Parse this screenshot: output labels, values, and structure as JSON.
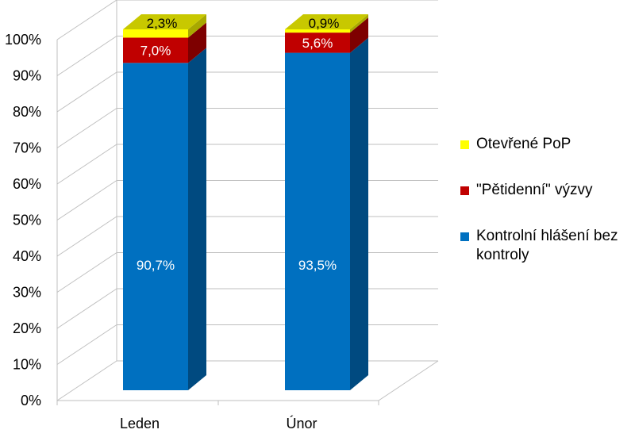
{
  "chart_data": {
    "type": "bar",
    "stacked": true,
    "three_d": true,
    "percent_axis": true,
    "categories": [
      "Leden",
      "Únor"
    ],
    "series": [
      {
        "name": "Kontrolní hlášení bez kontroly",
        "values": [
          90.7,
          93.5
        ],
        "labels": [
          "90,7%",
          "93,5%"
        ],
        "color": "#0070C0",
        "side_color": "#004A80",
        "top_color": "#2E8FD8",
        "label_color": "#ffffff"
      },
      {
        "name": "\"Pětidenní\" výzvy",
        "values": [
          7.0,
          5.6
        ],
        "labels": [
          "7,0%",
          "5,6%"
        ],
        "color": "#C00000",
        "side_color": "#7E0000",
        "top_color": "#E02020",
        "label_color": "#ffffff"
      },
      {
        "name": "Otevřené PoP",
        "values": [
          2.3,
          0.9
        ],
        "labels": [
          "2,3%",
          "0,9%"
        ],
        "color": "#FFFF00",
        "side_color": "#A8A800",
        "top_color": "#C8C800",
        "label_color": "#000000"
      }
    ],
    "y_ticks": [
      "0%",
      "10%",
      "20%",
      "30%",
      "40%",
      "50%",
      "60%",
      "70%",
      "80%",
      "90%",
      "100%"
    ],
    "ylim": [
      0,
      100
    ],
    "grid": true,
    "legend_position": "right",
    "legend_order": [
      "Otevřené PoP",
      "\"Pětidenní\" výzvy",
      "Kontrolní hlášení bez kontroly"
    ]
  },
  "legend": {
    "item_0": "Otevřené PoP",
    "item_1": "\"Pětidenní\" výzvy",
    "item_2": "Kontrolní hlášení bez kontroly"
  },
  "colors": {
    "item_0": "#FFFF00",
    "item_1": "#C00000",
    "item_2": "#0070C0"
  }
}
